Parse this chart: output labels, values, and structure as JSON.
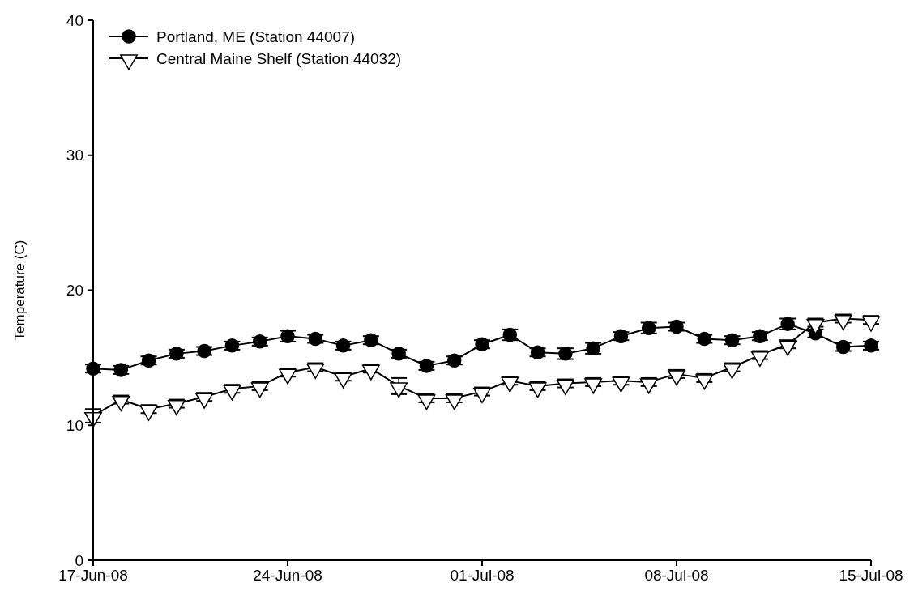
{
  "chart_data": {
    "type": "line",
    "ylabel": "Temperature (C)",
    "x": [
      "--06-17",
      "--06-18",
      "--06-19",
      "--06-20",
      "--06-21",
      "--06-22",
      "--06-23",
      "--06-24",
      "--06-25",
      "--06-26",
      "--06-27",
      "--06-28",
      "--06-29",
      "--06-30",
      "--07-01",
      "--07-02",
      "--07-03",
      "--07-04",
      "--07-05",
      "--07-06",
      "--07-07",
      "--07-08",
      "--07-09",
      "--07-10",
      "--07-11",
      "--07-12",
      "--07-13",
      "--07-14",
      "--07-15"
    ],
    "series": [
      {
        "name": "Portland, ME (Station 44007)",
        "color": "#000000",
        "marker": "circle",
        "values": [
          14.2,
          14.1,
          14.8,
          15.3,
          15.5,
          15.9,
          16.2,
          16.6,
          16.4,
          15.9,
          16.3,
          15.3,
          14.4,
          14.8,
          16.0,
          16.7,
          15.4,
          15.3,
          15.7,
          16.6,
          17.2,
          17.3,
          16.4,
          16.3,
          16.6,
          17.5,
          16.8,
          15.8,
          15.9
        ],
        "errors": [
          0.3,
          0.3,
          0.3,
          0.3,
          0.3,
          0.3,
          0.3,
          0.4,
          0.3,
          0.3,
          0.3,
          0.3,
          0.3,
          0.3,
          0.3,
          0.4,
          0.3,
          0.4,
          0.4,
          0.3,
          0.4,
          0.3,
          0.3,
          0.3,
          0.3,
          0.4,
          0.3,
          0.3,
          0.3
        ]
      },
      {
        "name": "Central Maine Shelf (Station 44032)",
        "color": "#000000",
        "marker": "triangle",
        "values": [
          10.7,
          11.9,
          11.2,
          11.6,
          12.1,
          12.7,
          12.9,
          13.9,
          14.3,
          13.6,
          14.2,
          12.9,
          12.0,
          12.0,
          12.5,
          13.3,
          12.9,
          13.1,
          13.2,
          13.3,
          13.2,
          13.8,
          13.5,
          14.3,
          15.2,
          16.0,
          17.6,
          17.9,
          17.8
        ],
        "errors": [
          0.5,
          0.3,
          0.3,
          0.3,
          0.3,
          0.3,
          0.3,
          0.3,
          0.3,
          0.3,
          0.3,
          0.6,
          0.3,
          0.3,
          0.3,
          0.3,
          0.3,
          0.3,
          0.3,
          0.3,
          0.3,
          0.3,
          0.3,
          0.3,
          0.3,
          0.3,
          0.3,
          0.3,
          0.3
        ]
      }
    ],
    "xlim": [
      "--06-17",
      "--07-15"
    ],
    "xticks": [
      {
        "value": "--06-17",
        "label": "17-Jun-08"
      },
      {
        "value": "--06-24",
        "label": "24-Jun-08"
      },
      {
        "value": "--07-01",
        "label": "01-Jul-08"
      },
      {
        "value": "--07-08",
        "label": "08-Jul-08"
      },
      {
        "value": "--07-15",
        "label": "15-Jul-08"
      }
    ],
    "ylim": [
      0,
      40
    ],
    "yticks": [
      0,
      10,
      20,
      30,
      40
    ],
    "grid": false,
    "legend": "top left",
    "line_style": "solid"
  }
}
